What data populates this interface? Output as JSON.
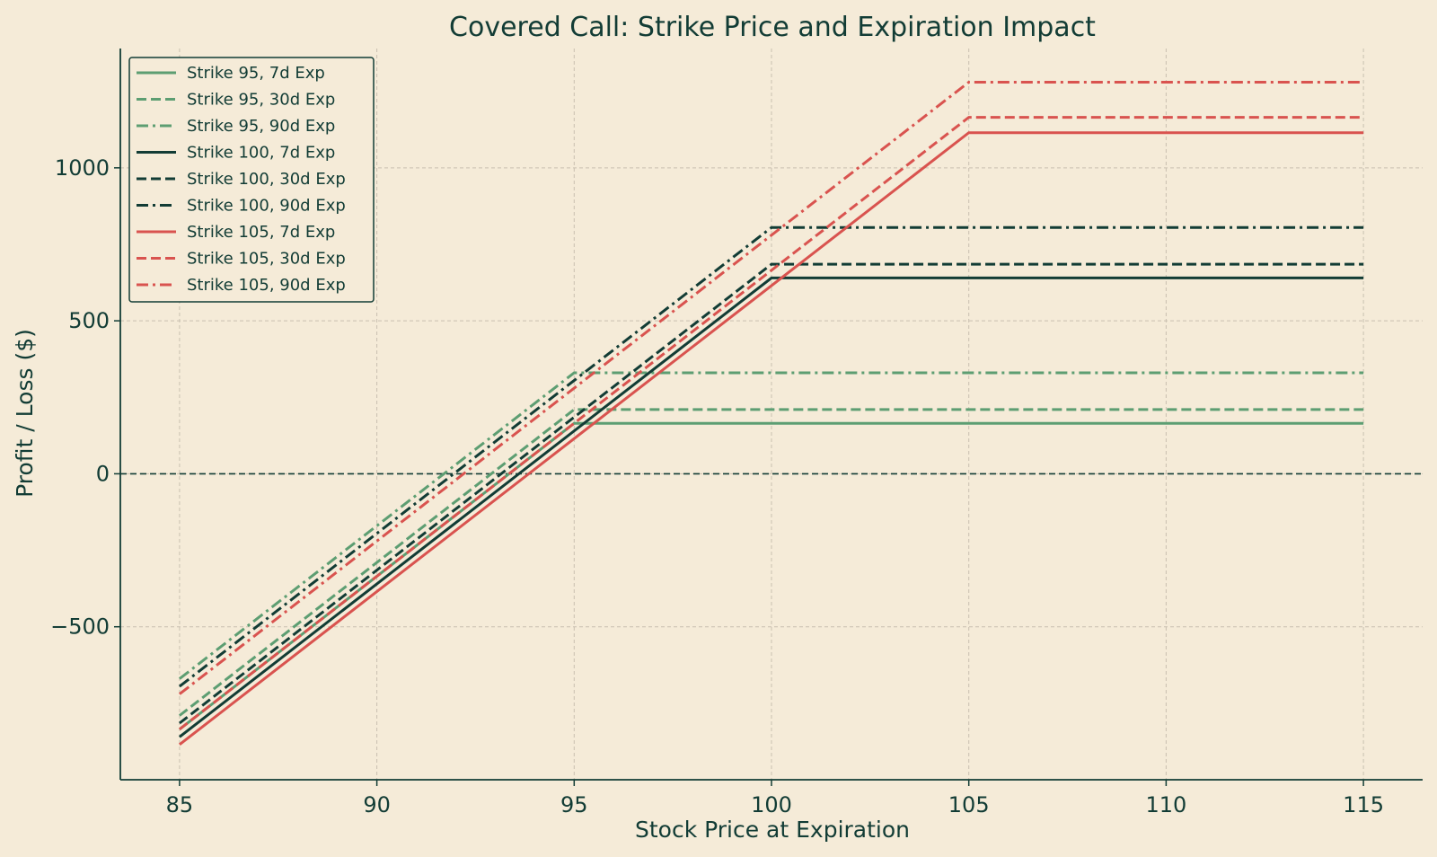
{
  "chart_data": {
    "type": "line",
    "title": "Covered Call: Strike Price and Expiration Impact",
    "xlabel": "Stock Price at Expiration",
    "ylabel": "Profit / Loss ($)",
    "xlim": [
      83.5,
      116.5
    ],
    "ylim": [
      -1000,
      1390
    ],
    "x_ticks": [
      85,
      90,
      95,
      100,
      105,
      110,
      115
    ],
    "y_ticks": [
      -500,
      0,
      500,
      1000
    ],
    "y_tick_labels": [
      "−500",
      "0",
      "500",
      "1000"
    ],
    "grid": true,
    "zero_line": true,
    "legend_position": "top-left",
    "colors": {
      "background": "#f5ebd8",
      "text": "#123c35",
      "green": "#5d9e72",
      "dark": "#123c35",
      "red": "#d9534f",
      "grid": "#c9c0b0"
    },
    "series": [
      {
        "name": "Strike 95, 7d Exp",
        "color": "#5d9e72",
        "style": "solid",
        "x": [
          85,
          95,
          115
        ],
        "y": [
          -835,
          165,
          165
        ]
      },
      {
        "name": "Strike 95, 30d Exp",
        "color": "#5d9e72",
        "style": "dashed",
        "x": [
          85,
          95,
          115
        ],
        "y": [
          -790,
          210,
          210
        ]
      },
      {
        "name": "Strike 95, 90d Exp",
        "color": "#5d9e72",
        "style": "dashdot",
        "x": [
          85,
          95,
          115
        ],
        "y": [
          -670,
          330,
          330
        ]
      },
      {
        "name": "Strike 100, 7d Exp",
        "color": "#123c35",
        "style": "solid",
        "x": [
          85,
          100,
          115
        ],
        "y": [
          -860,
          640,
          640
        ]
      },
      {
        "name": "Strike 100, 30d Exp",
        "color": "#123c35",
        "style": "dashed",
        "x": [
          85,
          100,
          115
        ],
        "y": [
          -815,
          685,
          685
        ]
      },
      {
        "name": "Strike 100, 90d Exp",
        "color": "#123c35",
        "style": "dashdot",
        "x": [
          85,
          100,
          115
        ],
        "y": [
          -695,
          805,
          805
        ]
      },
      {
        "name": "Strike 105, 7d Exp",
        "color": "#d9534f",
        "style": "solid",
        "x": [
          85,
          105,
          115
        ],
        "y": [
          -885,
          1115,
          1115
        ]
      },
      {
        "name": "Strike 105, 30d Exp",
        "color": "#d9534f",
        "style": "dashed",
        "x": [
          85,
          105,
          115
        ],
        "y": [
          -835,
          1165,
          1165
        ]
      },
      {
        "name": "Strike 105, 90d Exp",
        "color": "#d9534f",
        "style": "dashdot",
        "x": [
          85,
          105,
          115
        ],
        "y": [
          -720,
          1280,
          1280
        ]
      }
    ]
  }
}
